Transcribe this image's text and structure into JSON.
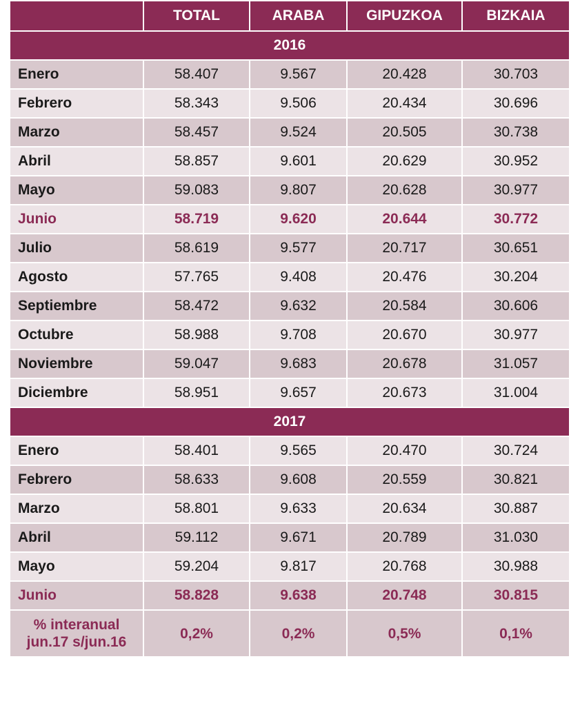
{
  "headers": [
    "",
    "TOTAL",
    "ARABA",
    "GIPUZKOA",
    "BIZKAIA"
  ],
  "years": [
    {
      "year": "2016",
      "rows": [
        {
          "month": "Enero",
          "values": [
            "58.407",
            "9.567",
            "20.428",
            "30.703"
          ],
          "highlight": false
        },
        {
          "month": "Febrero",
          "values": [
            "58.343",
            "9.506",
            "20.434",
            "30.696"
          ],
          "highlight": false
        },
        {
          "month": "Marzo",
          "values": [
            "58.457",
            "9.524",
            "20.505",
            "30.738"
          ],
          "highlight": false
        },
        {
          "month": "Abril",
          "values": [
            "58.857",
            "9.601",
            "20.629",
            "30.952"
          ],
          "highlight": false
        },
        {
          "month": "Mayo",
          "values": [
            "59.083",
            "9.807",
            "20.628",
            "30.977"
          ],
          "highlight": false
        },
        {
          "month": "Junio",
          "values": [
            "58.719",
            "9.620",
            "20.644",
            "30.772"
          ],
          "highlight": true
        },
        {
          "month": "Julio",
          "values": [
            "58.619",
            "9.577",
            "20.717",
            "30.651"
          ],
          "highlight": false
        },
        {
          "month": "Agosto",
          "values": [
            "57.765",
            "9.408",
            "20.476",
            "30.204"
          ],
          "highlight": false
        },
        {
          "month": "Septiembre",
          "values": [
            "58.472",
            "9.632",
            "20.584",
            "30.606"
          ],
          "highlight": false
        },
        {
          "month": "Octubre",
          "values": [
            "58.988",
            "9.708",
            "20.670",
            "30.977"
          ],
          "highlight": false
        },
        {
          "month": "Noviembre",
          "values": [
            "59.047",
            "9.683",
            "20.678",
            "31.057"
          ],
          "highlight": false
        },
        {
          "month": "Diciembre",
          "values": [
            "58.951",
            "9.657",
            "20.673",
            "31.004"
          ],
          "highlight": false
        }
      ]
    },
    {
      "year": "2017",
      "rows": [
        {
          "month": "Enero",
          "values": [
            "58.401",
            "9.565",
            "20.470",
            "30.724"
          ],
          "highlight": false
        },
        {
          "month": "Febrero",
          "values": [
            "58.633",
            "9.608",
            "20.559",
            "30.821"
          ],
          "highlight": false
        },
        {
          "month": "Marzo",
          "values": [
            "58.801",
            "9.633",
            "20.634",
            "30.887"
          ],
          "highlight": false
        },
        {
          "month": "Abril",
          "values": [
            "59.112",
            "9.671",
            "20.789",
            "31.030"
          ],
          "highlight": false
        },
        {
          "month": "Mayo",
          "values": [
            "59.204",
            "9.817",
            "20.768",
            "30.988"
          ],
          "highlight": false
        },
        {
          "month": "Junio",
          "values": [
            "58.828",
            "9.638",
            "20.748",
            "30.815"
          ],
          "highlight": true
        }
      ]
    }
  ],
  "footer": {
    "label_line1": "% interanual",
    "label_line2": "jun.17 s/jun.16",
    "values": [
      "0,2%",
      "0,2%",
      "0,5%",
      "0,1%"
    ]
  },
  "colors": {
    "header_bg": "#8b2b55",
    "row_dark": "#d8c8cd",
    "row_light": "#ece3e6",
    "highlight_text": "#8b2b55"
  }
}
